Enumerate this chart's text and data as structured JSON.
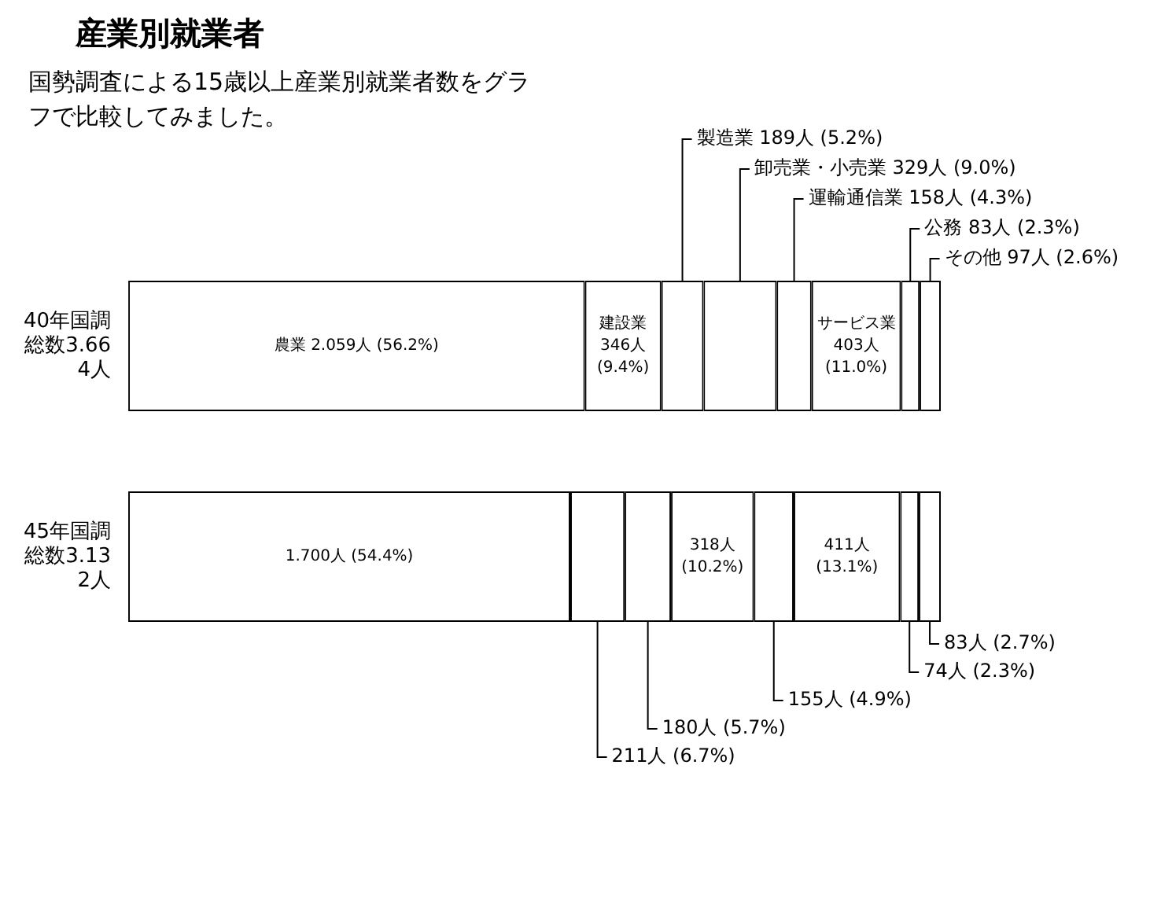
{
  "chart_data": {
    "type": "bar",
    "title": "産業別就業者",
    "subtitle": "国勢調査による15歳以上産業別就業者数をグラフで比較してみました。",
    "orientation": "horizontal",
    "stacked": true,
    "tick_labels": "y",
    "xlim": [
      0,
      100
    ],
    "categories": [
      "40年国調総数3.664人",
      "45年国調総数3.132人"
    ],
    "series": [
      {
        "name": "農業",
        "color": "#ffffff",
        "values": [
          56.2,
          54.4
        ],
        "value_labels": [
          "2.059人 (56.2%)",
          "1.700人 (54.4%)"
        ]
      },
      {
        "name": "建設業",
        "color": "#ffffff",
        "values": [
          9.4,
          6.7
        ],
        "value_labels": [
          "346人 (9.4%)",
          "211人 (6.7%)"
        ]
      },
      {
        "name": "製造業",
        "color": "#ffffff",
        "values": [
          5.2,
          5.7
        ],
        "value_labels": [
          "189人 (5.2%)",
          "180人 (5.7%)"
        ]
      },
      {
        "name": "卸売業・小売業",
        "color": "#ffffff",
        "values": [
          9.0,
          10.2
        ],
        "value_labels": [
          "329人 (9.0%)",
          "318人 (10.2%)"
        ]
      },
      {
        "name": "運輸通信業",
        "color": "#ffffff",
        "values": [
          4.3,
          4.9
        ],
        "value_labels": [
          "158人 (4.3%)",
          "155人 (4.9%)"
        ]
      },
      {
        "name": "サービス業",
        "color": "#ffffff",
        "values": [
          11.0,
          13.1
        ],
        "value_labels": [
          "403人 (11.0%)",
          "411人 (13.1%)"
        ]
      },
      {
        "name": "公務",
        "color": "#ffffff",
        "values": [
          2.3,
          2.3
        ],
        "value_labels": [
          "83人 (2.3%)",
          "74人 (2.3%)"
        ]
      },
      {
        "name": "その他",
        "color": "#ffffff",
        "values": [
          2.6,
          2.7
        ],
        "value_labels": [
          "97人 (2.6%)",
          "83人 (2.7%)"
        ]
      }
    ]
  }
}
